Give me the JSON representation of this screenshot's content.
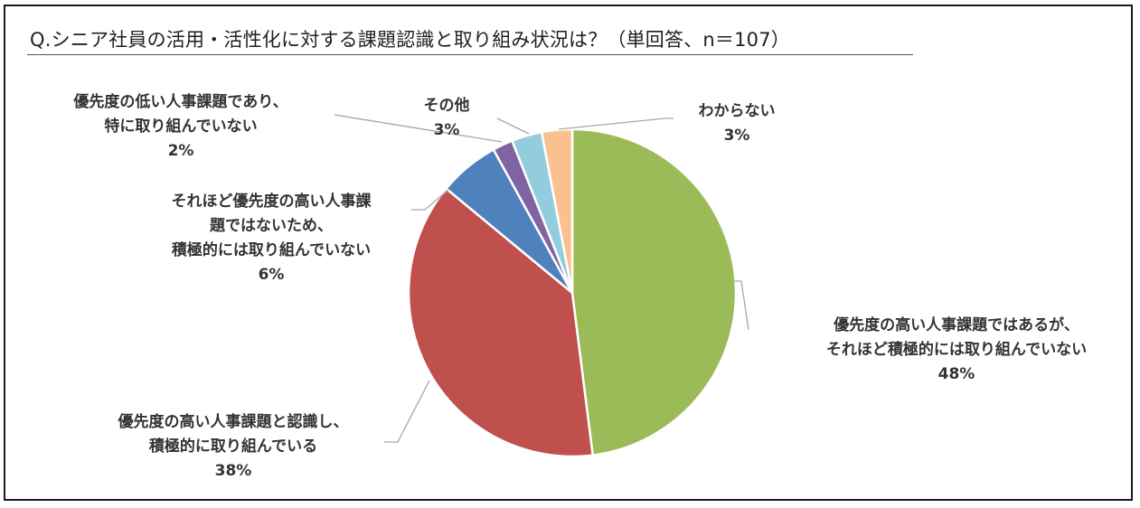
{
  "title": "Q.シニア社員の活用・活性化に対する課題認識と取り組み状況は？（単回答、n＝107）",
  "chart_data": {
    "type": "pie",
    "title": "Q.シニア社員の活用・活性化に対する課題認識と取り組み状況は？（単回答、n＝107）",
    "n": 107,
    "slices": [
      {
        "label_lines": [
          "優先度の高い人事課題ではあるが、",
          "それほど積極的には取り組んでいない"
        ],
        "value": 48,
        "value_label": "48%",
        "color": "#9BBB59"
      },
      {
        "label_lines": [
          "優先度の高い人事課題と認識し、",
          "積極的に取り組んでいる"
        ],
        "value": 38,
        "value_label": "38%",
        "color": "#C0504D"
      },
      {
        "label_lines": [
          "それほど優先度の高い人事課",
          "題ではないため、",
          "積極的には取り組んでいない"
        ],
        "value": 6,
        "value_label": "6%",
        "color": "#4F81BD"
      },
      {
        "label_lines": [
          "優先度の低い人事課題であり、",
          "特に取り組んでいない"
        ],
        "value": 2,
        "value_label": "2%",
        "color": "#8064A2"
      },
      {
        "label_lines": [
          "その他"
        ],
        "value": 3,
        "value_label": "3%",
        "color": "#93CDDD"
      },
      {
        "label_lines": [
          "わからない"
        ],
        "value": 3,
        "value_label": "3%",
        "color": "#FAC090"
      }
    ]
  }
}
